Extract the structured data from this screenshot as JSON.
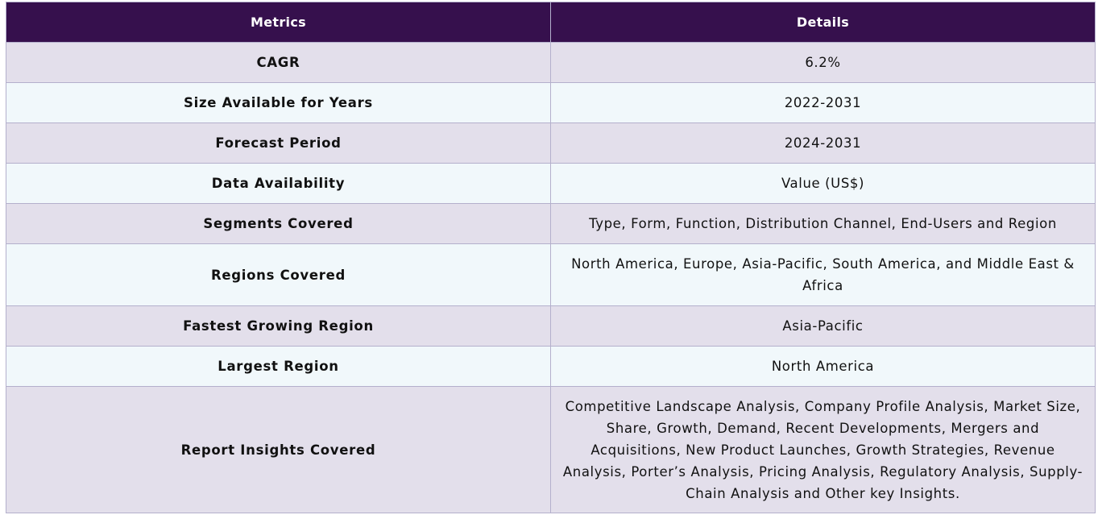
{
  "table": {
    "headers": [
      "Metrics",
      "Details"
    ],
    "rows": [
      {
        "metric": "CAGR",
        "details": "6.2%"
      },
      {
        "metric": "Size Available for Years",
        "details": "2022-2031"
      },
      {
        "metric": "Forecast Period",
        "details": "2024-2031"
      },
      {
        "metric": "Data Availability",
        "details": "Value (US$)"
      },
      {
        "metric": "Segments Covered",
        "details": "Type, Form, Function, Distribution Channel, End-Users and Region"
      },
      {
        "metric": "Regions Covered",
        "details": "North America, Europe, Asia-Pacific, South America, and Middle East & Africa"
      },
      {
        "metric": "Fastest Growing Region",
        "details": "Asia-Pacific"
      },
      {
        "metric": "Largest Region",
        "details": "North America"
      },
      {
        "metric": "Report Insights Covered",
        "details": "Competitive Landscape Analysis, Company Profile Analysis, Market Size, Share, Growth, Demand, Recent Developments, Mergers and Acquisitions, New Product Launches, Growth Strategies, Revenue Analysis, Porter’s Analysis, Pricing Analysis, Regulatory Analysis, Supply-Chain Analysis and Other key Insights."
      }
    ]
  },
  "colors": {
    "header_background": "#36104d",
    "header_text": "#ffffff",
    "row_odd_background": "#e3dfeb",
    "row_even_background": "#f1f8fb",
    "border": "#b4b0cc"
  }
}
